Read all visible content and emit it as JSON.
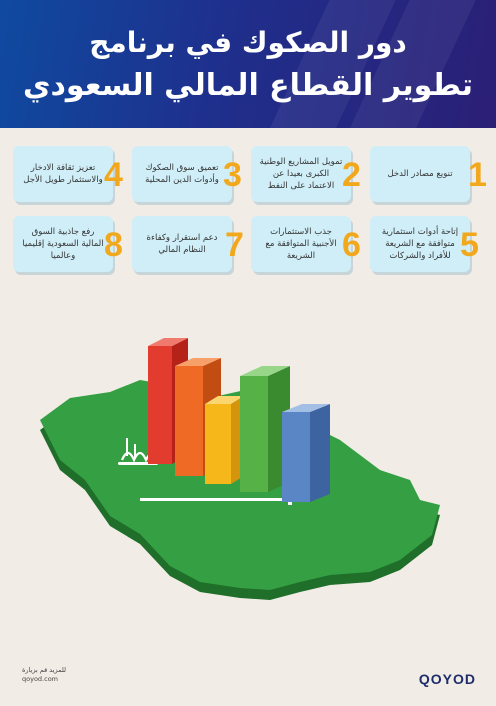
{
  "title": {
    "line1": "دور الصكوك في برنامج",
    "line2": "تطوير القطاع المالي السعودي"
  },
  "cards": [
    {
      "number": "1",
      "text": "تنويع مصادر الدخل"
    },
    {
      "number": "2",
      "text": "تمويل المشاريع الوطنية الكبرى بعيدا عن الاعتماد على النفط"
    },
    {
      "number": "3",
      "text": "تعميق سوق الصكوك وأدوات الدين المحلية"
    },
    {
      "number": "4",
      "text": "تعزيز ثقافة الادخار والاستثمار طويل الأجل"
    },
    {
      "number": "5",
      "text": "إتاحة أدوات استثمارية متوافقة مع الشريعة للأفراد والشركات"
    },
    {
      "number": "6",
      "text": "جذب الاستثمارات الأجنبية المتوافقة مع الشريعة"
    },
    {
      "number": "7",
      "text": "دعم استقرار وكفاءة النظام المالي"
    },
    {
      "number": "8",
      "text": "رفع جاذبية السوق المالية السعودية إقليميا وعالميا"
    }
  ],
  "colors": {
    "bar_red": "#e23c2f",
    "bar_orange": "#ef6a25",
    "bar_yellow": "#f6b71a",
    "bar_green": "#56b246",
    "bar_blue": "#5b86c6",
    "map_green": "#2f9a3a"
  },
  "footer": {
    "note_line1": "للمزيد قم بزيارة",
    "note_line2": "qoyod.com",
    "logo": "QOYOD"
  }
}
